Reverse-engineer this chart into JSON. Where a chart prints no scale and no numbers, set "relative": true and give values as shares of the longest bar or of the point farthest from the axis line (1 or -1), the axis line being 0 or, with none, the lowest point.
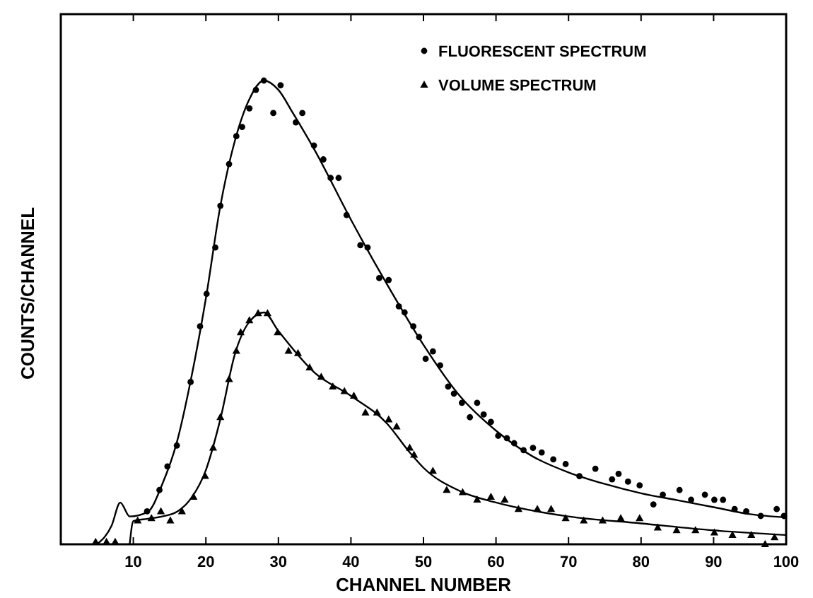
{
  "chart_data": {
    "type": "scatter",
    "xlabel": "CHANNEL NUMBER",
    "ylabel": "COUNTS/CHANNEL",
    "xlim": [
      0,
      100
    ],
    "xticks": [
      10,
      20,
      30,
      40,
      50,
      60,
      70,
      80,
      90,
      100
    ],
    "relative": true,
    "legend": "top right",
    "series": [
      {
        "name": "FLUORESCENT SPECTRUM",
        "marker": "circle",
        "color": "#000000",
        "x": [
          11.9,
          13.6,
          14.7,
          16.0,
          17.9,
          19.2,
          20.1,
          21.3,
          22.0,
          23.2,
          24.2,
          25.0,
          26.0,
          26.9,
          28.0,
          29.3,
          30.3,
          32.4,
          33.3,
          34.9,
          36.2,
          37.2,
          38.3,
          39.4,
          41.3,
          42.3,
          43.9,
          45.2,
          46.6,
          47.4,
          48.6,
          49.4,
          50.3,
          51.3,
          52.3,
          53.4,
          54.2,
          55.3,
          56.4,
          57.4,
          58.3,
          59.3,
          60.3,
          61.5,
          62.5,
          63.8,
          65.1,
          66.3,
          67.9,
          69.6,
          71.5,
          73.7,
          76.0,
          76.9,
          78.2,
          79.8,
          81.7,
          83.0,
          85.3,
          86.9,
          88.8,
          90.1,
          91.3,
          92.9,
          94.5,
          96.5,
          98.7,
          99.7
        ],
        "values": [
          0.071,
          0.117,
          0.168,
          0.213,
          0.35,
          0.47,
          0.54,
          0.64,
          0.73,
          0.82,
          0.88,
          0.9,
          0.94,
          0.98,
          1.0,
          0.93,
          0.99,
          0.91,
          0.93,
          0.86,
          0.83,
          0.79,
          0.79,
          0.71,
          0.645,
          0.64,
          0.574,
          0.57,
          0.513,
          0.5,
          0.47,
          0.447,
          0.4,
          0.416,
          0.386,
          0.34,
          0.325,
          0.305,
          0.274,
          0.305,
          0.28,
          0.264,
          0.234,
          0.229,
          0.218,
          0.203,
          0.208,
          0.198,
          0.183,
          0.173,
          0.147,
          0.163,
          0.14,
          0.152,
          0.135,
          0.127,
          0.086,
          0.107,
          0.117,
          0.096,
          0.107,
          0.096,
          0.096,
          0.076,
          0.071,
          0.061,
          0.076,
          0.061
        ]
      },
      {
        "name": "VOLUME SPECTRUM",
        "marker": "triangle",
        "color": "#000000",
        "x": [
          4.8,
          6.3,
          7.5,
          10.6,
          12.5,
          13.8,
          15.1,
          16.7,
          18.3,
          19.9,
          21.0,
          22.0,
          23.2,
          24.2,
          24.8,
          26.0,
          27.2,
          28.5,
          29.9,
          31.4,
          32.7,
          34.3,
          35.9,
          37.5,
          39.1,
          40.4,
          42.0,
          43.6,
          45.2,
          46.3,
          48.1,
          48.7,
          51.3,
          53.2,
          55.4,
          57.4,
          59.3,
          61.2,
          63.1,
          65.7,
          67.6,
          69.6,
          72.1,
          74.7,
          77.2,
          79.8,
          82.3,
          84.9,
          87.5,
          90.1,
          92.6,
          95.2,
          97.1,
          98.4
        ],
        "values": [
          0.005,
          0.005,
          0.005,
          0.051,
          0.056,
          0.071,
          0.051,
          0.071,
          0.102,
          0.147,
          0.208,
          0.274,
          0.356,
          0.417,
          0.457,
          0.483,
          0.498,
          0.498,
          0.457,
          0.417,
          0.412,
          0.381,
          0.361,
          0.34,
          0.33,
          0.32,
          0.284,
          0.284,
          0.269,
          0.254,
          0.208,
          0.193,
          0.158,
          0.117,
          0.112,
          0.096,
          0.102,
          0.096,
          0.076,
          0.076,
          0.076,
          0.056,
          0.051,
          0.051,
          0.056,
          0.056,
          0.036,
          0.03,
          0.03,
          0.025,
          0.02,
          0.02,
          0,
          0.015
        ]
      },
      {
        "type": "line",
        "marker": "none",
        "color": "#000000",
        "x": [
          5,
          7,
          8.2,
          9.5,
          12,
          14,
          16,
          18,
          20,
          22,
          24,
          26,
          28,
          30,
          32,
          35,
          40,
          45,
          50,
          55,
          60,
          65,
          70,
          75,
          80,
          85,
          90,
          95,
          100
        ],
        "values": [
          0,
          0.04,
          0.09,
          0.06,
          0.07,
          0.13,
          0.22,
          0.36,
          0.53,
          0.73,
          0.87,
          0.96,
          1.0,
          0.98,
          0.93,
          0.85,
          0.7,
          0.56,
          0.43,
          0.32,
          0.245,
          0.19,
          0.155,
          0.13,
          0.11,
          0.095,
          0.08,
          0.065,
          0.058
        ]
      },
      {
        "type": "line",
        "marker": "none",
        "color": "#000000",
        "x": [
          9.5,
          10,
          12,
          14,
          16,
          18,
          20,
          22,
          24,
          26,
          28,
          30,
          35,
          40,
          45,
          48,
          50,
          55,
          60,
          70,
          80,
          90,
          100
        ],
        "values": [
          0,
          0.05,
          0.055,
          0.06,
          0.07,
          0.1,
          0.16,
          0.27,
          0.41,
          0.48,
          0.5,
          0.46,
          0.37,
          0.32,
          0.26,
          0.2,
          0.165,
          0.115,
          0.09,
          0.06,
          0.045,
          0.03,
          0.02
        ]
      }
    ]
  }
}
